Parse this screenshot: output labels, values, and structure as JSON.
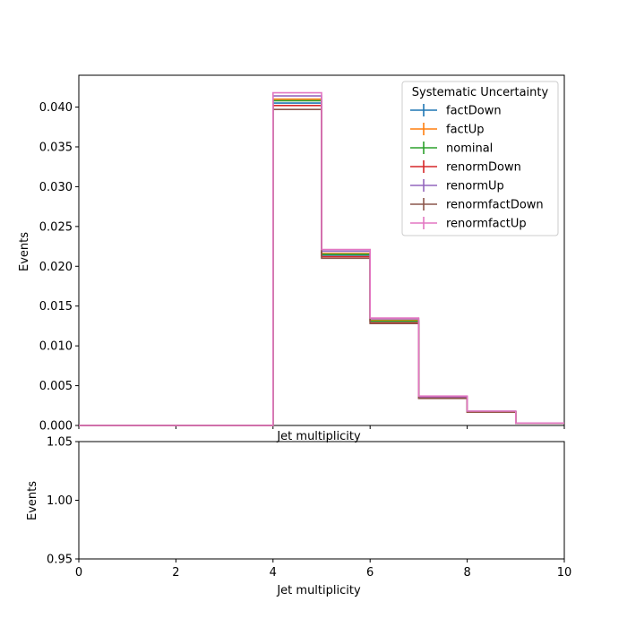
{
  "chart_data": [
    {
      "type": "line",
      "step": "histogram",
      "x_edges": [
        0,
        1,
        2,
        3,
        4,
        5,
        6,
        7,
        8,
        9,
        10
      ],
      "xlabel": "Jet multiplicity",
      "ylabel": "Events",
      "xlim": [
        0,
        10
      ],
      "ylim": [
        0,
        0.044
      ],
      "y_ticks": [
        "0.000",
        "0.005",
        "0.010",
        "0.015",
        "0.020",
        "0.025",
        "0.030",
        "0.035",
        "0.040"
      ],
      "grid": false,
      "legend": {
        "title": "Systematic Uncertainty",
        "placement": "top-right"
      },
      "series": [
        {
          "name": "factDown",
          "color": "#1f77b4",
          "values": [
            0,
            0,
            0,
            0,
            0.0405,
            0.0214,
            0.0131,
            0.0035,
            0.0017,
            0.0003
          ]
        },
        {
          "name": "factUp",
          "color": "#ff7f0e",
          "values": [
            0,
            0,
            0,
            0,
            0.041,
            0.0216,
            0.0132,
            0.0036,
            0.0017,
            0.0003
          ]
        },
        {
          "name": "nominal",
          "color": "#2ca02c",
          "values": [
            0,
            0,
            0,
            0,
            0.0408,
            0.0215,
            0.0131,
            0.0035,
            0.0017,
            0.0003
          ]
        },
        {
          "name": "renormDown",
          "color": "#d62728",
          "values": [
            0,
            0,
            0,
            0,
            0.0402,
            0.0212,
            0.0129,
            0.0035,
            0.0017,
            0.0003
          ]
        },
        {
          "name": "renormUp",
          "color": "#9467bd",
          "values": [
            0,
            0,
            0,
            0,
            0.0414,
            0.0219,
            0.0134,
            0.0036,
            0.0018,
            0.0003
          ]
        },
        {
          "name": "renormfactDown",
          "color": "#8c564b",
          "values": [
            0,
            0,
            0,
            0,
            0.0397,
            0.021,
            0.0128,
            0.0034,
            0.0017,
            0.0003
          ]
        },
        {
          "name": "renormfactUp",
          "color": "#e377c2",
          "values": [
            0,
            0,
            0,
            0,
            0.0418,
            0.0221,
            0.0135,
            0.0037,
            0.0018,
            0.0003
          ]
        }
      ]
    },
    {
      "type": "line",
      "xlabel": "Jet multiplicity",
      "ylabel": "Events",
      "xlim": [
        0,
        10
      ],
      "ylim": [
        0.95,
        1.05
      ],
      "x_ticks": [
        "0",
        "2",
        "4",
        "6",
        "8",
        "10"
      ],
      "y_ticks": [
        "0.95",
        "1.00",
        "1.05"
      ],
      "series": []
    }
  ]
}
